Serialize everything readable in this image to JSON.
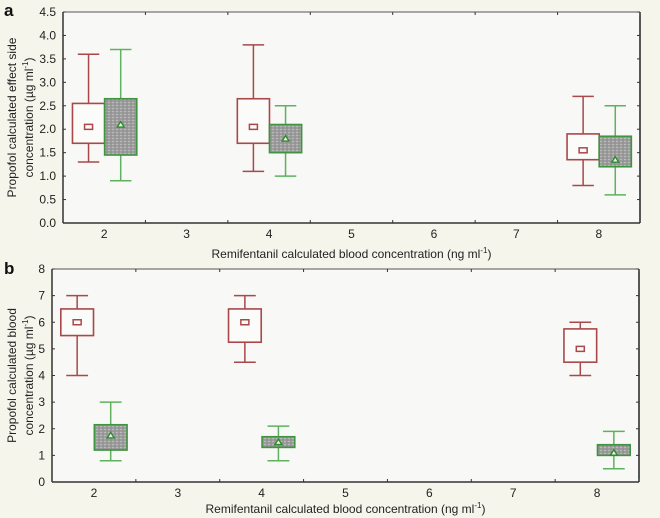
{
  "chart_data": [
    {
      "panel": "a",
      "type": "box",
      "xlabel": "Remifentanil calculated blood concentration (ng ml",
      "xlabel_sup": "-1",
      "xlabel_end": ")",
      "ylabel_lines": [
        "Propofol calculated effect side",
        "concentration (µg ml"
      ],
      "ylabel_sup": "-1",
      "ylabel_end": ")",
      "xlim": [
        1.5,
        8.5
      ],
      "ylim": [
        0,
        4.5
      ],
      "xticks": [
        2,
        3,
        4,
        5,
        6,
        7,
        8
      ],
      "xtick_labels": [
        "2",
        "3",
        "4",
        "5",
        "6",
        "7",
        "8"
      ],
      "yticks": [
        0,
        0.5,
        1,
        1.5,
        2,
        2.5,
        3,
        3.5,
        4,
        4.5
      ],
      "ytick_labels": [
        "0.0",
        "0.5",
        "1.0",
        "1.5",
        "2.0",
        "2.5",
        "3.0",
        "3.5",
        "4.0",
        "4.5"
      ],
      "grid": false,
      "series": [
        {
          "name": "series-red",
          "color": "#a8484a",
          "fill": "none",
          "mean_marker": "square",
          "offset": -0.19,
          "boxes": [
            {
              "x": 2,
              "whisker_low": 1.3,
              "q1": 1.7,
              "mean": 2.05,
              "q3": 2.55,
              "whisker_high": 3.6
            },
            {
              "x": 4,
              "whisker_low": 1.1,
              "q1": 1.7,
              "mean": 2.05,
              "q3": 2.65,
              "whisker_high": 3.8
            },
            {
              "x": 8,
              "whisker_low": 0.8,
              "q1": 1.35,
              "mean": 1.55,
              "q3": 1.9,
              "whisker_high": 2.7
            }
          ]
        },
        {
          "name": "series-green",
          "color": "#3f9440",
          "whisker_color": "#5eb25e",
          "fill": "hatched-gray",
          "mean_marker": "triangle",
          "offset": 0.2,
          "boxes": [
            {
              "x": 2,
              "whisker_low": 0.9,
              "q1": 1.45,
              "mean": 2.1,
              "q3": 2.65,
              "whisker_high": 3.7
            },
            {
              "x": 4,
              "whisker_low": 1.0,
              "q1": 1.5,
              "mean": 1.8,
              "q3": 2.1,
              "whisker_high": 2.5
            },
            {
              "x": 8,
              "whisker_low": 0.6,
              "q1": 1.2,
              "mean": 1.35,
              "q3": 1.85,
              "whisker_high": 2.5
            }
          ]
        }
      ]
    },
    {
      "panel": "b",
      "type": "box",
      "xlabel": "Remifentanil calculated blood concentration (ng ml",
      "xlabel_sup": "-1",
      "xlabel_end": ")",
      "ylabel_lines": [
        "Propofol calculated blood",
        "concentration (µg ml"
      ],
      "ylabel_sup": "-1",
      "ylabel_end": ")",
      "xlim": [
        1.5,
        8.5
      ],
      "ylim": [
        0,
        8
      ],
      "xticks": [
        2,
        3,
        4,
        5,
        6,
        7,
        8
      ],
      "xtick_labels": [
        "2",
        "3",
        "4",
        "5",
        "6",
        "7",
        "8"
      ],
      "yticks": [
        0,
        1,
        2,
        3,
        4,
        5,
        6,
        7,
        8
      ],
      "ytick_labels": [
        "0",
        "1",
        "2",
        "3",
        "4",
        "5",
        "6",
        "7",
        "8"
      ],
      "grid": false,
      "series": [
        {
          "name": "series-red",
          "color": "#a8484a",
          "fill": "none",
          "mean_marker": "square",
          "offset": -0.2,
          "boxes": [
            {
              "x": 2,
              "whisker_low": 4.0,
              "q1": 5.5,
              "mean": 6.0,
              "q3": 6.5,
              "whisker_high": 7.0
            },
            {
              "x": 4,
              "whisker_low": 4.5,
              "q1": 5.25,
              "mean": 6.0,
              "q3": 6.5,
              "whisker_high": 7.0
            },
            {
              "x": 8,
              "whisker_low": 4.0,
              "q1": 4.5,
              "mean": 5.0,
              "q3": 5.75,
              "whisker_high": 6.0
            }
          ]
        },
        {
          "name": "series-green",
          "color": "#3f9440",
          "whisker_color": "#5eb25e",
          "fill": "hatched-gray",
          "mean_marker": "triangle",
          "offset": 0.2,
          "boxes": [
            {
              "x": 2,
              "whisker_low": 0.8,
              "q1": 1.2,
              "mean": 1.75,
              "q3": 2.15,
              "whisker_high": 3.0
            },
            {
              "x": 4,
              "whisker_low": 0.8,
              "q1": 1.3,
              "mean": 1.5,
              "q3": 1.7,
              "whisker_high": 2.1
            },
            {
              "x": 8,
              "whisker_low": 0.5,
              "q1": 1.0,
              "mean": 1.1,
              "q3": 1.4,
              "whisker_high": 1.9
            }
          ]
        }
      ]
    }
  ]
}
